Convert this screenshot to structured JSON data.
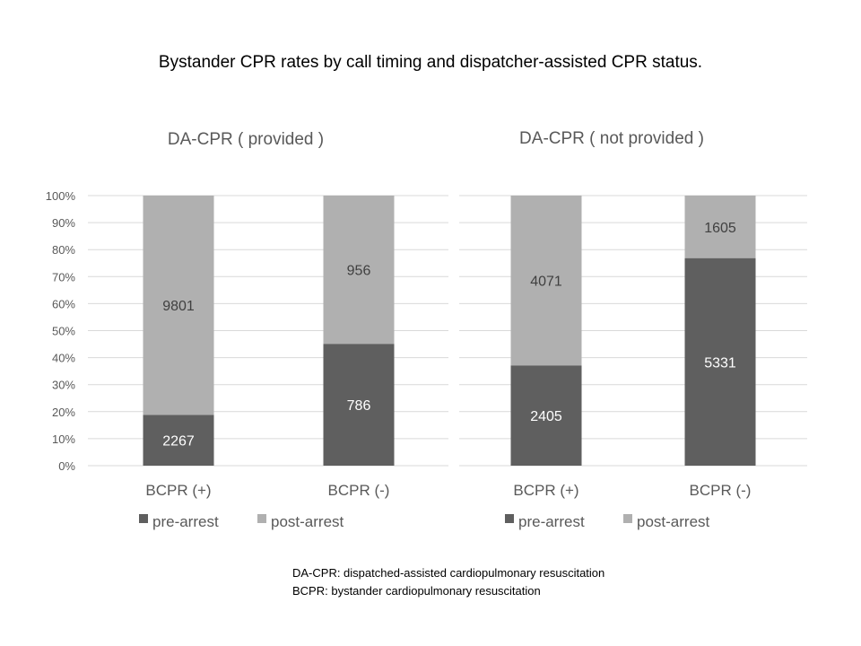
{
  "title": "Bystander CPR rates by call timing and dispatcher-assisted CPR status.",
  "colors": {
    "pre-arrest": "#5f5f5f",
    "post-arrest": "#b0b0b0",
    "grid": "#d9d9d9"
  },
  "chart_data": [
    {
      "type": "bar",
      "stacked": "percent",
      "title": "DA-CPR ( provided )",
      "categories": [
        "BCPR (+)",
        "BCPR (-)"
      ],
      "series": [
        {
          "name": "pre-arrest",
          "values": [
            2267,
            786
          ]
        },
        {
          "name": "post-arrest",
          "values": [
            9801,
            956
          ]
        }
      ],
      "ylim": [
        0,
        100
      ],
      "yticks": [
        "0%",
        "10%",
        "20%",
        "30%",
        "40%",
        "50%",
        "60%",
        "70%",
        "80%",
        "90%",
        "100%"
      ],
      "grid": true,
      "legend": "bottom"
    },
    {
      "type": "bar",
      "stacked": "percent",
      "title": "DA-CPR ( not provided )",
      "categories": [
        "BCPR (+)",
        "BCPR (-)"
      ],
      "series": [
        {
          "name": "pre-arrest",
          "values": [
            2405,
            5331
          ]
        },
        {
          "name": "post-arrest",
          "values": [
            4071,
            1605
          ]
        }
      ],
      "ylim": [
        0,
        100
      ],
      "grid": true,
      "legend": "bottom"
    }
  ],
  "footnotes": [
    "DA-CPR: dispatched-assisted cardiopulmonary resuscitation",
    "BCPR: bystander cardiopulmonary resuscitation"
  ]
}
